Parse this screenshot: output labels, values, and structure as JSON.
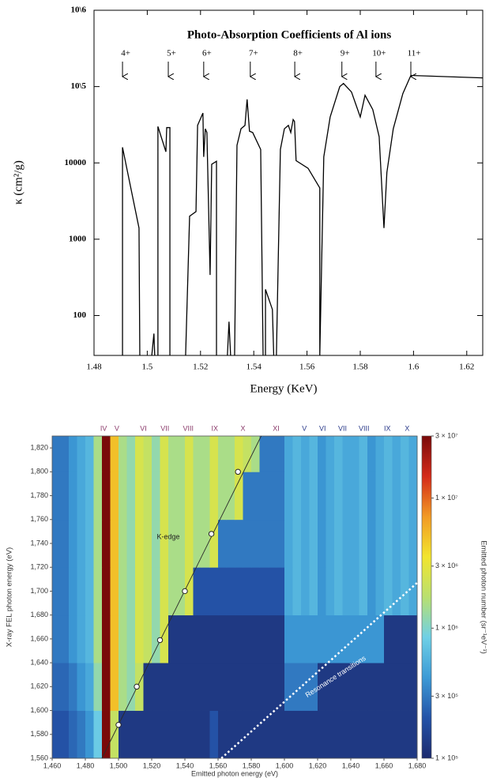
{
  "chart_data": [
    {
      "type": "line",
      "title": "Photo-Absorption Coefficients of Al ions",
      "xlabel": "Energy (KeV)",
      "ylabel": "κ (cm²/g)",
      "log_y": true,
      "color": "#000000",
      "xlim": [
        1.48,
        1.626
      ],
      "ylim": [
        30,
        1000000
      ],
      "xticks": [
        1.48,
        1.5,
        1.52,
        1.54,
        1.56,
        1.58,
        1.6,
        1.62
      ],
      "yticks": [
        {
          "value": 1000000,
          "label": "10\\6"
        },
        {
          "value": 100000,
          "label": "10\\5"
        },
        10000,
        1000,
        100
      ],
      "annotations": [
        {
          "label": "4+",
          "x": 1.4907
        },
        {
          "label": "5+",
          "x": 1.5079
        },
        {
          "label": "6+",
          "x": 1.5212
        },
        {
          "label": "7+",
          "x": 1.5387
        },
        {
          "label": "8+",
          "x": 1.5554
        },
        {
          "label": "9+",
          "x": 1.5731
        },
        {
          "label": "10+",
          "x": 1.5859
        },
        {
          "label": "11+",
          "x": 1.599
        }
      ],
      "x": [
        1.4907,
        1.4907,
        1.4969,
        1.4972,
        1.4972,
        1.5017,
        1.5025,
        1.5028,
        1.5028,
        1.504,
        1.504,
        1.507,
        1.5073,
        1.5085,
        1.5085,
        1.5085,
        1.5144,
        1.5159,
        1.5183,
        1.5189,
        1.5209,
        1.5212,
        1.5218,
        1.5224,
        1.5236,
        1.5242,
        1.526,
        1.526,
        1.526,
        1.5301,
        1.5307,
        1.5313,
        1.5313,
        1.5328,
        1.5337,
        1.5352,
        1.5367,
        1.5375,
        1.5384,
        1.5396,
        1.5426,
        1.5435,
        1.5435,
        1.5444,
        1.5444,
        1.547,
        1.5475,
        1.5475,
        1.5485,
        1.55,
        1.5515,
        1.553,
        1.5539,
        1.5548,
        1.5553,
        1.5559,
        1.5604,
        1.5648,
        1.5648,
        1.5663,
        1.5687,
        1.5723,
        1.5737,
        1.5767,
        1.58,
        1.5818,
        1.5847,
        1.5871,
        1.5889,
        1.59,
        1.5924,
        1.596,
        1.599,
        1.626
      ],
      "values": [
        30,
        16000,
        1400,
        30,
        null,
        30,
        58,
        30,
        null,
        30,
        30000,
        14000,
        29000,
        29000,
        30,
        null,
        30,
        2000,
        2300,
        31000,
        45000,
        12000,
        28000,
        25000,
        340,
        9600,
        10500,
        30,
        null,
        30,
        83,
        30,
        null,
        30,
        17000,
        28000,
        31000,
        68000,
        26000,
        25000,
        15000,
        30,
        null,
        30,
        220,
        120,
        30,
        null,
        30,
        15000,
        28000,
        31000,
        25000,
        37000,
        35000,
        10700,
        8500,
        4700,
        30,
        12000,
        40000,
        100000,
        110000,
        85000,
        40000,
        77000,
        50000,
        22000,
        1400,
        7500,
        28000,
        81000,
        140000,
        130000
      ]
    },
    {
      "type": "heatmap",
      "xlabel": "Emitted photon energy (eV)",
      "ylabel": "X-ray FEL photon energy (eV)",
      "xlim": [
        1460,
        1680
      ],
      "ylim": [
        1560,
        1830
      ],
      "xticks": [
        {
          "value": 1460,
          "label": "1,460"
        },
        {
          "value": 1480,
          "label": "1,480"
        },
        {
          "value": 1500,
          "label": "1,500"
        },
        {
          "value": 1520,
          "label": "1,520"
        },
        {
          "value": 1540,
          "label": "1,540"
        },
        {
          "value": 1560,
          "label": "1,560"
        },
        {
          "value": 1580,
          "label": "1,580"
        },
        {
          "value": 1600,
          "label": "1,600"
        },
        {
          "value": 1620,
          "label": "1,620"
        },
        {
          "value": 1640,
          "label": "1,640"
        },
        {
          "value": 1660,
          "label": "1,660"
        },
        {
          "value": 1680,
          "label": "1,680"
        }
      ],
      "yticks": [
        {
          "value": 1560,
          "label": "1,560"
        },
        {
          "value": 1580,
          "label": "1,580"
        },
        {
          "value": 1600,
          "label": "1,600"
        },
        {
          "value": 1620,
          "label": "1,620"
        },
        {
          "value": 1640,
          "label": "1,640"
        },
        {
          "value": 1660,
          "label": "1,660"
        },
        {
          "value": 1680,
          "label": "1,680"
        },
        {
          "value": 1700,
          "label": "1,700"
        },
        {
          "value": 1720,
          "label": "1,720"
        },
        {
          "value": 1740,
          "label": "1,740"
        },
        {
          "value": 1760,
          "label": "1,760"
        },
        {
          "value": 1780,
          "label": "1,780"
        },
        {
          "value": 1800,
          "label": "1,800"
        },
        {
          "value": 1820,
          "label": "1,820"
        }
      ],
      "x_bins": [
        1460,
        1465,
        1470,
        1475,
        1480,
        1485,
        1490,
        1495,
        1500,
        1505,
        1510,
        1515,
        1520,
        1525,
        1530,
        1535,
        1540,
        1545,
        1550,
        1555,
        1560,
        1565,
        1570,
        1575,
        1580,
        1585,
        1590,
        1595,
        1600,
        1605,
        1610,
        1615,
        1620,
        1625,
        1630,
        1635,
        1640,
        1645,
        1650,
        1655,
        1660,
        1665,
        1670,
        1675,
        1680
      ],
      "y_bins": [
        1560,
        1600,
        1640,
        1680,
        1720,
        1760,
        1800,
        1830
      ],
      "z": [
        [
          200000.0,
          200000.0,
          250000.0,
          300000.0,
          400000.0,
          800000.0,
          30000000.0,
          2000000.0,
          130000.0,
          130000.0,
          130000.0,
          130000.0,
          130000.0,
          130000.0,
          130000.0,
          130000.0,
          130000.0,
          130000.0,
          130000.0,
          200000.0,
          130000.0,
          130000.0,
          130000.0,
          130000.0,
          130000.0,
          130000.0,
          130000.0,
          130000.0,
          130000.0,
          130000.0,
          130000.0,
          130000.0,
          130000.0,
          130000.0,
          130000.0,
          130000.0,
          130000.0,
          130000.0,
          130000.0,
          130000.0,
          130000.0,
          130000.0,
          130000.0,
          130000.0
        ],
        [
          250000.0,
          250000.0,
          300000.0,
          400000.0,
          500000.0,
          1200000.0,
          30000000.0,
          5000000.0,
          1500000.0,
          1200000.0,
          2000000.0,
          130000.0,
          130000.0,
          130000.0,
          130000.0,
          130000.0,
          130000.0,
          130000.0,
          130000.0,
          130000.0,
          130000.0,
          130000.0,
          130000.0,
          130000.0,
          130000.0,
          130000.0,
          130000.0,
          130000.0,
          300000.0,
          300000.0,
          300000.0,
          300000.0,
          130000.0,
          130000.0,
          130000.0,
          130000.0,
          130000.0,
          130000.0,
          130000.0,
          130000.0,
          130000.0,
          130000.0,
          130000.0,
          130000.0
        ],
        [
          300000.0,
          300000.0,
          400000.0,
          500000.0,
          600000.0,
          1500000.0,
          30000000.0,
          5000000.0,
          1500000.0,
          1200000.0,
          2500000.0,
          2000000.0,
          1200000.0,
          2500000.0,
          130000.0,
          130000.0,
          130000.0,
          130000.0,
          130000.0,
          130000.0,
          130000.0,
          130000.0,
          130000.0,
          130000.0,
          130000.0,
          130000.0,
          130000.0,
          130000.0,
          400000.0,
          400000.0,
          400000.0,
          400000.0,
          400000.0,
          400000.0,
          400000.0,
          400000.0,
          400000.0,
          400000.0,
          400000.0,
          400000.0,
          130000.0,
          130000.0,
          130000.0,
          130000.0
        ],
        [
          300000.0,
          300000.0,
          400000.0,
          500000.0,
          600000.0,
          1500000.0,
          30000000.0,
          5000000.0,
          1500000.0,
          1200000.0,
          2500000.0,
          2000000.0,
          1200000.0,
          2500000.0,
          1500000.0,
          1500000.0,
          2500000.0,
          200000.0,
          200000.0,
          200000.0,
          200000.0,
          200000.0,
          200000.0,
          200000.0,
          200000.0,
          200000.0,
          200000.0,
          200000.0,
          500000.0,
          600000.0,
          500000.0,
          600000.0,
          400000.0,
          500000.0,
          600000.0,
          500000.0,
          500000.0,
          600000.0,
          400000.0,
          500000.0,
          600000.0,
          500000.0,
          600000.0,
          500000.0
        ],
        [
          300000.0,
          300000.0,
          400000.0,
          500000.0,
          600000.0,
          1500000.0,
          30000000.0,
          5000000.0,
          1500000.0,
          1200000.0,
          2500000.0,
          2000000.0,
          1200000.0,
          2500000.0,
          1500000.0,
          1500000.0,
          2500000.0,
          1500000.0,
          1500000.0,
          2500000.0,
          300000.0,
          300000.0,
          300000.0,
          300000.0,
          300000.0,
          300000.0,
          300000.0,
          300000.0,
          500000.0,
          600000.0,
          500000.0,
          600000.0,
          400000.0,
          500000.0,
          600000.0,
          500000.0,
          500000.0,
          600000.0,
          400000.0,
          500000.0,
          600000.0,
          500000.0,
          600000.0,
          500000.0
        ],
        [
          300000.0,
          300000.0,
          400000.0,
          500000.0,
          600000.0,
          1500000.0,
          30000000.0,
          5000000.0,
          1500000.0,
          1200000.0,
          2500000.0,
          2000000.0,
          1200000.0,
          2500000.0,
          1500000.0,
          1500000.0,
          2500000.0,
          1500000.0,
          1500000.0,
          2500000.0,
          1500000.0,
          1500000.0,
          2500000.0,
          300000.0,
          300000.0,
          300000.0,
          300000.0,
          300000.0,
          500000.0,
          600000.0,
          500000.0,
          600000.0,
          400000.0,
          500000.0,
          600000.0,
          500000.0,
          500000.0,
          600000.0,
          400000.0,
          500000.0,
          600000.0,
          500000.0,
          600000.0,
          500000.0
        ],
        [
          300000.0,
          300000.0,
          400000.0,
          500000.0,
          600000.0,
          1500000.0,
          30000000.0,
          5000000.0,
          1500000.0,
          1200000.0,
          2500000.0,
          2000000.0,
          1200000.0,
          2500000.0,
          1500000.0,
          1500000.0,
          2500000.0,
          1500000.0,
          1500000.0,
          2500000.0,
          1500000.0,
          1500000.0,
          2500000.0,
          2000000.0,
          1500000.0,
          300000.0,
          300000.0,
          300000.0,
          500000.0,
          600000.0,
          500000.0,
          600000.0,
          400000.0,
          500000.0,
          600000.0,
          500000.0,
          500000.0,
          600000.0,
          400000.0,
          500000.0,
          600000.0,
          500000.0,
          600000.0,
          500000.0
        ]
      ],
      "colorscale": [
        "#1c2a6e",
        "#2453a8",
        "#3c9ad6",
        "#6fd0e6",
        "#b9e070",
        "#f2e52e",
        "#f29a24",
        "#d42a1a",
        "#7a0a0a"
      ],
      "colorbar": {
        "label": "Emitted photon number (sr⁻¹eV⁻¹)",
        "lim": [
          100000,
          30000000
        ],
        "log": true,
        "ticks": [
          {
            "value": 100000,
            "label": "1 × 10⁵"
          },
          {
            "value": 300000,
            "label": "3 × 10⁵"
          },
          {
            "value": 1000000,
            "label": "1 × 10⁶"
          },
          {
            "value": 3000000,
            "label": "3 × 10⁶"
          },
          {
            "value": 10000000,
            "label": "1 × 10⁷"
          },
          {
            "value": 30000000,
            "label": "3 × 10⁷"
          }
        ]
      },
      "ion_labels": [
        {
          "label": "IV",
          "x": 1491,
          "color": "#8a3a6a"
        },
        {
          "label": "V",
          "x": 1499,
          "color": "#8a3a6a"
        },
        {
          "label": "VI",
          "x": 1515,
          "color": "#8a3a6a"
        },
        {
          "label": "VII",
          "x": 1528,
          "color": "#8a3a6a"
        },
        {
          "label": "VIII",
          "x": 1542,
          "color": "#8a3a6a"
        },
        {
          "label": "IX",
          "x": 1558,
          "color": "#8a3a6a"
        },
        {
          "label": "X",
          "x": 1575,
          "color": "#8a3a6a"
        },
        {
          "label": "XI",
          "x": 1595,
          "color": "#8a3a6a"
        },
        {
          "label": "V",
          "x": 1612,
          "color": "#2a3a8a"
        },
        {
          "label": "VI",
          "x": 1623,
          "color": "#2a3a8a"
        },
        {
          "label": "VII",
          "x": 1635,
          "color": "#2a3a8a"
        },
        {
          "label": "VIII",
          "x": 1648,
          "color": "#2a3a8a"
        },
        {
          "label": "IX",
          "x": 1662,
          "color": "#2a3a8a"
        },
        {
          "label": "X",
          "x": 1674,
          "color": "#2a3a8a"
        }
      ],
      "k_edge_label": "K-edge",
      "k_edge_line": {
        "x": [
          1490,
          1586
        ],
        "y": [
          1560,
          1830
        ]
      },
      "k_edge_points": {
        "x": [
          1500,
          1511,
          1525,
          1540,
          1556,
          1572
        ],
        "y": [
          1588,
          1620,
          1659,
          1700,
          1748,
          1800
        ]
      },
      "resonance_label": "Resonance transitions",
      "resonance_line": {
        "x": [
          1562,
          1680
        ],
        "y": [
          1560,
          1707
        ]
      }
    }
  ]
}
